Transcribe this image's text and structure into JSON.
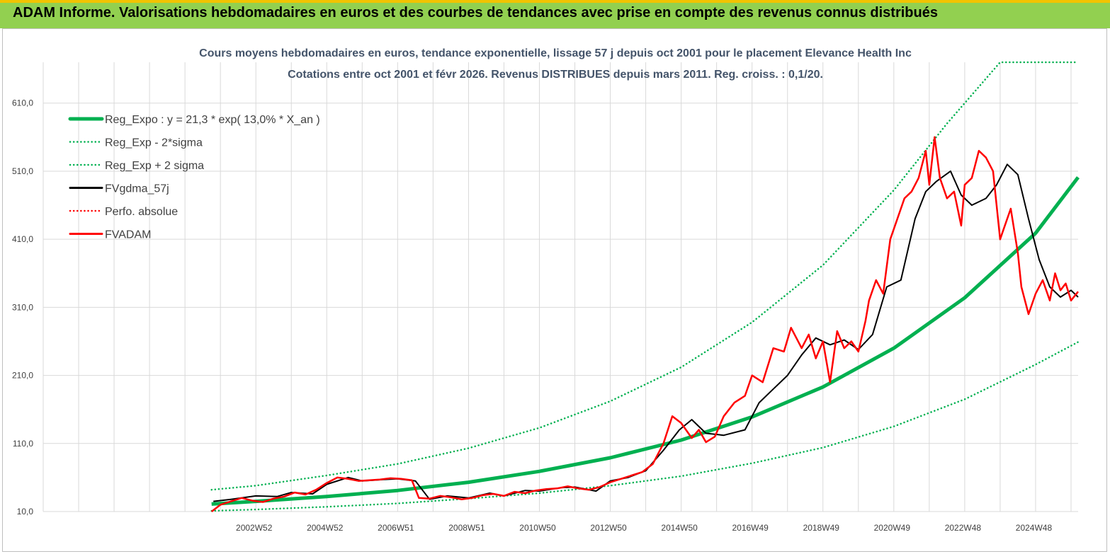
{
  "banner": {
    "title": "ADAM Informe. Valorisations hebdomadaires en euros et des courbes de tendances avec prise en compte des revenus connus distribués"
  },
  "chart_data": {
    "type": "line",
    "title": "Cours moyens hebdomadaires en euros, tendance exponentielle, lissage 57 j depuis oct 2001 pour le placement Elevance Health Inc",
    "subtitle": "Cotations entre oct 2001 et févr 2026. Revenus DISTRIBUES depuis mars 2011. Reg. croiss. : 0,1/20.",
    "ylim": [
      10,
      670
    ],
    "xlim": [
      1997.0,
      2026.2
    ],
    "grid": true,
    "legend_position": "top-left",
    "y_ticks": [
      {
        "v": 10,
        "label": "10,0"
      },
      {
        "v": 110,
        "label": "110,0"
      },
      {
        "v": 210,
        "label": "210,0"
      },
      {
        "v": 310,
        "label": "310,0"
      },
      {
        "v": 410,
        "label": "410,0"
      },
      {
        "v": 510,
        "label": "510,0"
      },
      {
        "v": 610,
        "label": "610,0"
      }
    ],
    "x_ticks": [
      {
        "v": 2002.95,
        "label": "2002W52"
      },
      {
        "v": 2004.95,
        "label": "2004W52"
      },
      {
        "v": 2006.95,
        "label": "2006W51"
      },
      {
        "v": 2008.95,
        "label": "2008W51"
      },
      {
        "v": 2010.95,
        "label": "2010W50"
      },
      {
        "v": 2012.95,
        "label": "2012W50"
      },
      {
        "v": 2014.95,
        "label": "2014W50"
      },
      {
        "v": 2016.95,
        "label": "2016W49"
      },
      {
        "v": 2018.95,
        "label": "2018W49"
      },
      {
        "v": 2020.95,
        "label": "2020W49"
      },
      {
        "v": 2022.95,
        "label": "2022W48"
      },
      {
        "v": 2024.95,
        "label": "2024W48"
      }
    ],
    "series": [
      {
        "name": "Reg_Expo : y = 21,3 * exp( 13,0% *  X_an )",
        "color": "#00b050",
        "style": "solid",
        "width": 5,
        "x": [
          2001.75,
          2003,
          2005,
          2007,
          2009,
          2011,
          2013,
          2015,
          2017,
          2019,
          2021,
          2023,
          2025,
          2026.2
        ],
        "y": [
          21,
          25,
          32,
          41,
          53,
          69,
          89,
          115,
          149,
          193,
          250,
          324,
          419,
          501
        ]
      },
      {
        "name": "Reg_Exp - 2*sigma",
        "color": "#00b050",
        "style": "dotted",
        "width": 2.5,
        "x": [
          2001.75,
          2003,
          2005,
          2007,
          2009,
          2011,
          2013,
          2015,
          2017,
          2019,
          2021,
          2023,
          2025,
          2026.2
        ],
        "y": [
          11,
          13,
          17,
          22,
          29,
          37,
          48,
          62,
          81,
          104,
          135,
          175,
          226,
          259
        ]
      },
      {
        "name": "Reg_Exp + 2 sigma",
        "color": "#00b050",
        "style": "dotted",
        "width": 2.5,
        "x": [
          2001.75,
          2003,
          2005,
          2007,
          2009,
          2011,
          2013,
          2015,
          2017,
          2019,
          2021,
          2022.5,
          2024,
          2026.2
        ],
        "y": [
          42,
          48,
          63,
          80,
          103,
          133,
          172,
          222,
          288,
          372,
          482,
          580,
          670,
          670
        ]
      },
      {
        "name": "FVgdma_57j",
        "color": "#000000",
        "style": "solid",
        "width": 2,
        "x": [
          2001.8,
          2002.3,
          2003,
          2003.6,
          2004,
          2004.6,
          2005,
          2005.6,
          2006,
          2006.6,
          2007,
          2007.5,
          2007.9,
          2008.4,
          2009,
          2009.6,
          2010,
          2010.6,
          2011,
          2011.6,
          2012,
          2012.6,
          2013,
          2013.5,
          2014,
          2014.5,
          2014.95,
          2015.3,
          2015.7,
          2016.2,
          2016.8,
          2017.2,
          2017.6,
          2018,
          2018.4,
          2018.8,
          2019.2,
          2019.6,
          2020,
          2020.4,
          2020.8,
          2021.2,
          2021.6,
          2021.9,
          2022.2,
          2022.6,
          2022.9,
          2023.2,
          2023.6,
          2023.9,
          2024.2,
          2024.5,
          2024.8,
          2025.1,
          2025.4,
          2025.7,
          2026.0,
          2026.2
        ],
        "y": [
          25,
          28,
          33,
          32,
          38,
          36,
          50,
          60,
          55,
          57,
          58,
          55,
          28,
          33,
          30,
          37,
          33,
          41,
          40,
          45,
          46,
          40,
          55,
          60,
          70,
          100,
          130,
          145,
          125,
          122,
          130,
          170,
          190,
          210,
          240,
          265,
          255,
          262,
          248,
          270,
          340,
          350,
          440,
          480,
          495,
          510,
          475,
          460,
          470,
          490,
          520,
          505,
          440,
          380,
          340,
          325,
          335,
          325
        ]
      },
      {
        "name": "Perfo. absolue",
        "color": "#ff0000",
        "style": "dotted",
        "width": 1.5,
        "x": [],
        "y": []
      },
      {
        "name": "FVADAM",
        "color": "#ff0000",
        "style": "solid",
        "width": 2.5,
        "x": [
          2001.75,
          2002.0,
          2002.3,
          2002.6,
          2002.9,
          2003.2,
          2003.5,
          2003.8,
          2004.1,
          2004.4,
          2004.7,
          2005.0,
          2005.3,
          2005.6,
          2005.9,
          2006.2,
          2006.5,
          2006.8,
          2007.1,
          2007.4,
          2007.6,
          2007.9,
          2008.2,
          2008.5,
          2008.8,
          2009.1,
          2009.4,
          2009.7,
          2010.0,
          2010.3,
          2010.6,
          2010.9,
          2011.2,
          2011.5,
          2011.8,
          2012.1,
          2012.4,
          2012.7,
          2013.0,
          2013.3,
          2013.6,
          2013.9,
          2014.2,
          2014.5,
          2014.75,
          2015.0,
          2015.3,
          2015.5,
          2015.7,
          2015.95,
          2016.2,
          2016.5,
          2016.8,
          2017.0,
          2017.3,
          2017.6,
          2017.9,
          2018.1,
          2018.4,
          2018.6,
          2018.8,
          2019.0,
          2019.2,
          2019.4,
          2019.6,
          2019.8,
          2020.0,
          2020.2,
          2020.3,
          2020.5,
          2020.7,
          2020.9,
          2021.1,
          2021.3,
          2021.5,
          2021.7,
          2021.9,
          2022.0,
          2022.15,
          2022.3,
          2022.5,
          2022.7,
          2022.9,
          2023.0,
          2023.2,
          2023.4,
          2023.6,
          2023.8,
          2024.0,
          2024.1,
          2024.3,
          2024.5,
          2024.6,
          2024.8,
          2025.0,
          2025.2,
          2025.4,
          2025.55,
          2025.7,
          2025.85,
          2026.0,
          2026.2
        ],
        "y": [
          10,
          20,
          25,
          30,
          26,
          24,
          29,
          32,
          38,
          35,
          42,
          52,
          60,
          58,
          55,
          56,
          57,
          59,
          58,
          56,
          30,
          29,
          33,
          31,
          28,
          30,
          34,
          36,
          33,
          39,
          37,
          41,
          43,
          44,
          47,
          44,
          42,
          46,
          53,
          58,
          63,
          68,
          80,
          110,
          150,
          140,
          118,
          130,
          112,
          120,
          150,
          170,
          180,
          210,
          200,
          250,
          245,
          280,
          250,
          270,
          235,
          260,
          200,
          275,
          250,
          260,
          245,
          290,
          320,
          350,
          330,
          410,
          440,
          470,
          480,
          500,
          540,
          490,
          560,
          500,
          470,
          480,
          430,
          490,
          500,
          540,
          530,
          510,
          410,
          425,
          455,
          390,
          340,
          300,
          330,
          350,
          320,
          360,
          335,
          345,
          320,
          333
        ]
      }
    ]
  }
}
